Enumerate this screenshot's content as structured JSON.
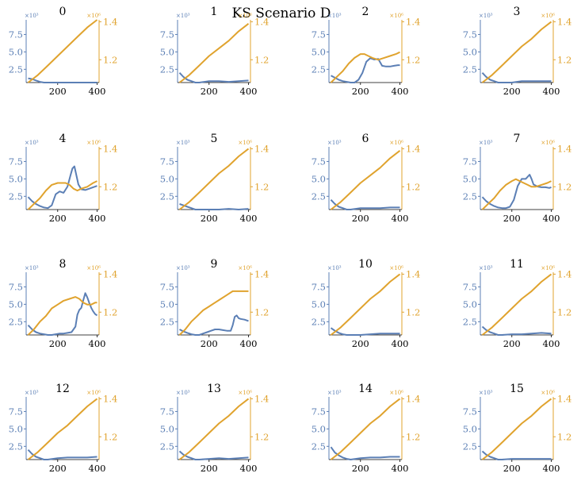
{
  "figure": {
    "title": "KS Scenario D",
    "left_axis_color": "#5b7fb5",
    "right_axis_color": "#e0a32e",
    "left_exponent_label": "×10³",
    "right_exponent_label": "×10⁶"
  },
  "chart_data": {
    "type": "line",
    "layout": "small-multiples 4x4",
    "title": "KS Scenario D",
    "shared_axes": {
      "x_range": [
        40,
        410
      ],
      "x_ticks": [
        200,
        400
      ],
      "left_y_range": [
        0.6,
        9.6
      ],
      "left_y_ticks": [
        2.5,
        5.0,
        7.5
      ],
      "left_y_tick_labels": [
        "2.5",
        "5.0",
        "7.5"
      ],
      "left_y_multiplier": "×10³",
      "right_y_range": [
        1.08,
        1.41
      ],
      "right_y_ticks": [
        1.2,
        1.4
      ],
      "right_y_tick_labels": [
        "1.2",
        "1.4"
      ],
      "right_y_multiplier": "×10⁶",
      "grid": false
    },
    "panels": [
      {
        "title": "0",
        "blue": {
          "x": [
            50,
            70,
            90,
            110,
            130,
            150,
            200,
            250,
            300,
            350,
            400
          ],
          "y": [
            1.2,
            1.1,
            0.9,
            0.7,
            0.6,
            0.6,
            0.6,
            0.6,
            0.6,
            0.6,
            0.6
          ]
        },
        "orange": {
          "x": [
            50,
            100,
            150,
            200,
            250,
            300,
            350,
            400
          ],
          "y": [
            1.08,
            1.12,
            1.17,
            1.22,
            1.27,
            1.32,
            1.37,
            1.41
          ]
        }
      },
      {
        "title": "1",
        "blue": {
          "x": [
            50,
            70,
            90,
            110,
            130,
            150,
            200,
            250,
            300,
            350,
            400
          ],
          "y": [
            2.0,
            1.4,
            1.0,
            0.8,
            0.6,
            0.6,
            0.8,
            0.8,
            0.7,
            0.8,
            0.9
          ]
        },
        "orange": {
          "x": [
            50,
            100,
            150,
            200,
            250,
            300,
            350,
            400
          ],
          "y": [
            1.08,
            1.12,
            1.17,
            1.22,
            1.26,
            1.3,
            1.35,
            1.39
          ]
        }
      },
      {
        "title": "2",
        "blue": {
          "x": [
            50,
            70,
            90,
            110,
            130,
            150,
            170,
            190,
            210,
            230,
            250,
            270,
            290,
            310,
            330,
            350,
            370,
            390,
            400
          ],
          "y": [
            1.6,
            1.3,
            1.0,
            0.8,
            0.7,
            0.6,
            0.6,
            1.0,
            2.0,
            3.6,
            4.1,
            3.9,
            4.0,
            3.0,
            2.9,
            2.9,
            3.0,
            3.1,
            3.1
          ]
        },
        "orange": {
          "x": [
            50,
            80,
            110,
            140,
            170,
            200,
            220,
            240,
            260,
            290,
            320,
            350,
            380,
            400
          ],
          "y": [
            1.08,
            1.11,
            1.14,
            1.18,
            1.21,
            1.23,
            1.23,
            1.22,
            1.21,
            1.2,
            1.21,
            1.22,
            1.23,
            1.24
          ]
        }
      },
      {
        "title": "3",
        "blue": {
          "x": [
            50,
            70,
            90,
            110,
            130,
            150,
            200,
            250,
            300,
            350,
            400
          ],
          "y": [
            2.0,
            1.4,
            1.0,
            0.8,
            0.6,
            0.6,
            0.6,
            0.8,
            0.8,
            0.8,
            0.8
          ]
        },
        "orange": {
          "x": [
            50,
            100,
            150,
            200,
            250,
            300,
            350,
            400
          ],
          "y": [
            1.08,
            1.12,
            1.17,
            1.22,
            1.27,
            1.31,
            1.36,
            1.4
          ]
        }
      },
      {
        "title": "4",
        "blue": {
          "x": [
            50,
            70,
            90,
            110,
            130,
            150,
            170,
            190,
            210,
            230,
            250,
            265,
            275,
            285,
            295,
            305,
            320,
            340,
            360,
            380,
            400
          ],
          "y": [
            2.4,
            1.8,
            1.4,
            1.1,
            0.9,
            0.8,
            1.2,
            2.8,
            3.2,
            3.0,
            3.9,
            5.5,
            6.5,
            6.8,
            5.5,
            4.2,
            3.5,
            3.4,
            3.6,
            3.8,
            4.0
          ]
        },
        "orange": {
          "x": [
            50,
            80,
            110,
            140,
            170,
            200,
            220,
            240,
            260,
            280,
            300,
            320,
            350,
            380,
            400
          ],
          "y": [
            1.08,
            1.11,
            1.14,
            1.18,
            1.21,
            1.22,
            1.22,
            1.22,
            1.21,
            1.19,
            1.18,
            1.19,
            1.2,
            1.22,
            1.23
          ]
        }
      },
      {
        "title": "5",
        "blue": {
          "x": [
            50,
            70,
            90,
            110,
            130,
            150,
            200,
            250,
            300,
            350,
            400
          ],
          "y": [
            1.4,
            1.2,
            1.0,
            0.8,
            0.6,
            0.6,
            0.6,
            0.6,
            0.7,
            0.6,
            0.7
          ]
        },
        "orange": {
          "x": [
            50,
            100,
            150,
            200,
            250,
            300,
            350,
            400
          ],
          "y": [
            1.08,
            1.12,
            1.17,
            1.22,
            1.27,
            1.31,
            1.36,
            1.4
          ]
        }
      },
      {
        "title": "6",
        "blue": {
          "x": [
            50,
            70,
            90,
            110,
            130,
            150,
            200,
            250,
            300,
            350,
            400
          ],
          "y": [
            2.0,
            1.4,
            1.0,
            0.8,
            0.6,
            0.6,
            0.8,
            0.8,
            0.8,
            0.9,
            0.9
          ]
        },
        "orange": {
          "x": [
            50,
            100,
            150,
            200,
            250,
            300,
            350,
            400
          ],
          "y": [
            1.08,
            1.12,
            1.17,
            1.22,
            1.26,
            1.3,
            1.35,
            1.39
          ]
        }
      },
      {
        "title": "7",
        "blue": {
          "x": [
            50,
            70,
            90,
            110,
            130,
            150,
            170,
            190,
            210,
            230,
            250,
            270,
            290,
            300,
            310,
            330,
            350,
            370,
            390,
            400
          ],
          "y": [
            2.4,
            1.8,
            1.4,
            1.1,
            0.9,
            0.8,
            0.8,
            1.0,
            2.0,
            4.0,
            5.0,
            5.0,
            5.6,
            5.0,
            4.2,
            3.9,
            3.8,
            3.8,
            3.7,
            3.8
          ]
        },
        "orange": {
          "x": [
            50,
            80,
            110,
            140,
            170,
            200,
            220,
            240,
            260,
            280,
            300,
            320,
            350,
            380,
            400
          ],
          "y": [
            1.08,
            1.11,
            1.14,
            1.18,
            1.21,
            1.23,
            1.24,
            1.23,
            1.22,
            1.21,
            1.2,
            1.2,
            1.21,
            1.22,
            1.23
          ]
        }
      },
      {
        "title": "8",
        "blue": {
          "x": [
            50,
            70,
            90,
            110,
            130,
            150,
            170,
            190,
            210,
            230,
            250,
            270,
            290,
            300,
            310,
            320,
            330,
            340,
            350,
            360,
            370,
            380,
            390,
            400
          ],
          "y": [
            2.0,
            1.4,
            1.0,
            0.8,
            0.7,
            0.6,
            0.6,
            0.7,
            0.8,
            0.8,
            0.9,
            1.0,
            1.8,
            3.5,
            4.2,
            4.5,
            5.6,
            6.6,
            6.0,
            5.2,
            4.5,
            4.0,
            3.6,
            3.4
          ]
        },
        "orange": {
          "x": [
            50,
            80,
            110,
            140,
            170,
            200,
            230,
            260,
            290,
            310,
            330,
            350,
            370,
            390,
            400
          ],
          "y": [
            1.08,
            1.11,
            1.15,
            1.18,
            1.22,
            1.24,
            1.26,
            1.27,
            1.28,
            1.27,
            1.25,
            1.24,
            1.24,
            1.25,
            1.25
          ]
        }
      },
      {
        "title": "9",
        "blue": {
          "x": [
            50,
            70,
            90,
            110,
            130,
            150,
            170,
            190,
            210,
            230,
            250,
            270,
            290,
            310,
            320,
            330,
            340,
            350,
            360,
            380,
            400
          ],
          "y": [
            1.4,
            1.1,
            0.9,
            0.7,
            0.6,
            0.6,
            0.8,
            1.0,
            1.2,
            1.4,
            1.4,
            1.3,
            1.2,
            1.2,
            2.0,
            3.2,
            3.4,
            3.0,
            2.9,
            2.8,
            2.6
          ]
        },
        "orange": {
          "x": [
            50,
            80,
            110,
            140,
            170,
            200,
            230,
            260,
            290,
            320,
            350,
            380,
            400
          ],
          "y": [
            1.08,
            1.11,
            1.15,
            1.18,
            1.21,
            1.23,
            1.25,
            1.27,
            1.29,
            1.31,
            1.31,
            1.31,
            1.31
          ]
        }
      },
      {
        "title": "10",
        "blue": {
          "x": [
            50,
            70,
            90,
            110,
            130,
            150,
            200,
            250,
            300,
            350,
            400
          ],
          "y": [
            1.6,
            1.2,
            0.9,
            0.7,
            0.6,
            0.6,
            0.6,
            0.7,
            0.8,
            0.8,
            0.8
          ]
        },
        "orange": {
          "x": [
            50,
            100,
            150,
            200,
            250,
            300,
            350,
            400
          ],
          "y": [
            1.08,
            1.12,
            1.17,
            1.22,
            1.27,
            1.31,
            1.36,
            1.4
          ]
        }
      },
      {
        "title": "11",
        "blue": {
          "x": [
            50,
            70,
            90,
            110,
            130,
            150,
            200,
            250,
            300,
            350,
            400
          ],
          "y": [
            1.8,
            1.3,
            1.0,
            0.8,
            0.6,
            0.6,
            0.7,
            0.7,
            0.8,
            0.9,
            0.8
          ]
        },
        "orange": {
          "x": [
            50,
            100,
            150,
            200,
            250,
            300,
            350,
            400
          ],
          "y": [
            1.08,
            1.12,
            1.17,
            1.22,
            1.27,
            1.31,
            1.36,
            1.4
          ]
        }
      },
      {
        "title": "12",
        "blue": {
          "x": [
            50,
            70,
            90,
            110,
            130,
            150,
            200,
            250,
            300,
            350,
            400
          ],
          "y": [
            2.0,
            1.4,
            1.0,
            0.8,
            0.6,
            0.6,
            0.8,
            0.9,
            0.9,
            0.9,
            1.0
          ]
        },
        "orange": {
          "x": [
            50,
            100,
            150,
            200,
            250,
            300,
            350,
            400
          ],
          "y": [
            1.08,
            1.12,
            1.17,
            1.22,
            1.26,
            1.31,
            1.36,
            1.4
          ]
        }
      },
      {
        "title": "13",
        "blue": {
          "x": [
            50,
            70,
            90,
            110,
            130,
            150,
            200,
            250,
            300,
            350,
            400
          ],
          "y": [
            1.8,
            1.3,
            1.0,
            0.8,
            0.6,
            0.6,
            0.7,
            0.8,
            0.7,
            0.8,
            0.9
          ]
        },
        "orange": {
          "x": [
            50,
            100,
            150,
            200,
            250,
            300,
            350,
            400
          ],
          "y": [
            1.08,
            1.12,
            1.17,
            1.22,
            1.27,
            1.31,
            1.36,
            1.4
          ]
        }
      },
      {
        "title": "14",
        "blue": {
          "x": [
            50,
            70,
            90,
            110,
            130,
            150,
            200,
            250,
            300,
            350,
            400
          ],
          "y": [
            2.4,
            1.6,
            1.2,
            0.9,
            0.7,
            0.6,
            0.8,
            0.9,
            0.9,
            1.0,
            1.0
          ]
        },
        "orange": {
          "x": [
            50,
            100,
            150,
            200,
            250,
            300,
            350,
            400
          ],
          "y": [
            1.08,
            1.12,
            1.17,
            1.22,
            1.27,
            1.31,
            1.36,
            1.4
          ]
        }
      },
      {
        "title": "15",
        "blue": {
          "x": [
            50,
            70,
            90,
            110,
            130,
            150,
            200,
            250,
            300,
            350,
            400
          ],
          "y": [
            1.8,
            1.3,
            1.0,
            0.8,
            0.6,
            0.6,
            0.7,
            0.7,
            0.7,
            0.7,
            0.7
          ]
        },
        "orange": {
          "x": [
            50,
            100,
            150,
            200,
            250,
            300,
            350,
            400
          ],
          "y": [
            1.08,
            1.12,
            1.17,
            1.22,
            1.27,
            1.31,
            1.36,
            1.4
          ]
        }
      }
    ]
  }
}
